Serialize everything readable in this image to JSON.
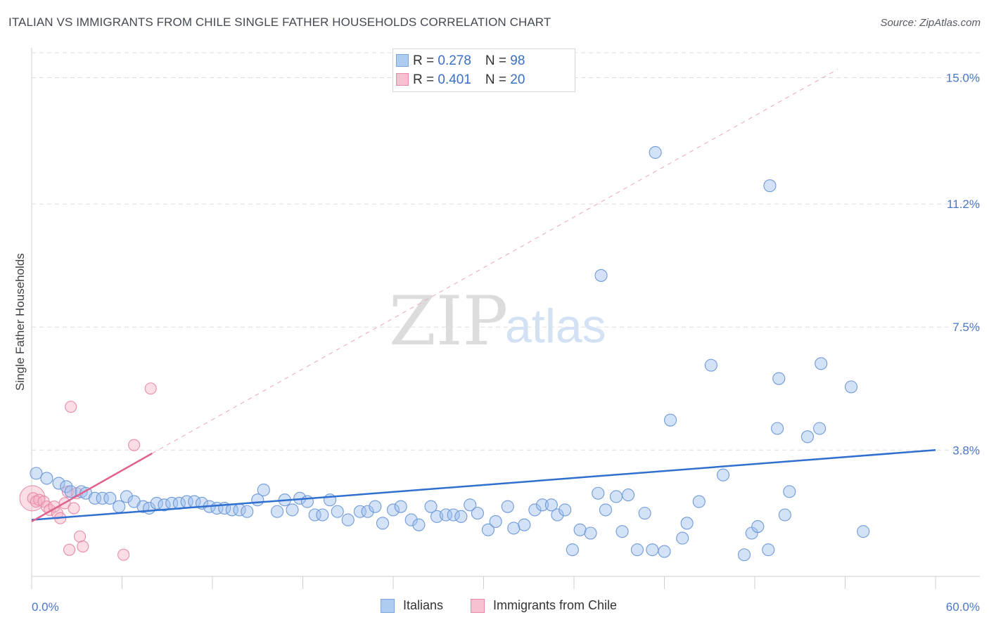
{
  "header": {
    "title": "ITALIAN VS IMMIGRANTS FROM CHILE SINGLE FATHER HOUSEHOLDS CORRELATION CHART",
    "source": "Source: ZipAtlas.com"
  },
  "watermark": {
    "zip": "ZIP",
    "atlas": "atlas"
  },
  "legend": {
    "rows": [
      {
        "r_label": "R = ",
        "r_value": "0.278",
        "n_label": "N = ",
        "n_value": "98",
        "color": "#aecbf2",
        "border": "#7aa4dc"
      },
      {
        "r_label": "R = ",
        "r_value": "0.401",
        "n_label": "N = ",
        "n_value": "20",
        "color": "#f7c0d0",
        "border": "#e88aa6"
      }
    ]
  },
  "bottom_legend": {
    "italians": "Italians",
    "chile": "Immigrants from Chile"
  },
  "chart_data": {
    "type": "scatter",
    "title": "ITALIAN VS IMMIGRANTS FROM CHILE SINGLE FATHER HOUSEHOLDS CORRELATION CHART",
    "xlabel": "",
    "ylabel": "Single Father Households",
    "xlim": [
      0,
      60
    ],
    "ylim": [
      0,
      15.75
    ],
    "x_tick_labels": [
      "0.0%",
      "60.0%"
    ],
    "y_ticks": [
      3.8,
      7.5,
      11.2,
      15.0
    ],
    "y_tick_labels": [
      "3.8%",
      "7.5%",
      "11.2%",
      "15.0%"
    ],
    "grid": true,
    "colors": {
      "italians": "#9dbfee",
      "italians_line": "#2f6fd0",
      "chile": "#f5b3c6",
      "chile_line": "#e0628d"
    },
    "series": [
      {
        "name": "Italians",
        "points": [
          [
            0.3,
            3.1
          ],
          [
            1.0,
            2.95
          ],
          [
            1.8,
            2.8
          ],
          [
            2.3,
            2.7
          ],
          [
            2.6,
            2.55
          ],
          [
            3.3,
            2.55
          ],
          [
            3.6,
            2.5
          ],
          [
            4.2,
            2.35
          ],
          [
            4.7,
            2.35
          ],
          [
            5.2,
            2.35
          ],
          [
            5.8,
            2.1
          ],
          [
            6.3,
            2.4
          ],
          [
            6.8,
            2.25
          ],
          [
            7.4,
            2.1
          ],
          [
            7.8,
            2.05
          ],
          [
            8.3,
            2.2
          ],
          [
            8.8,
            2.15
          ],
          [
            9.3,
            2.2
          ],
          [
            9.8,
            2.2
          ],
          [
            10.3,
            2.25
          ],
          [
            10.8,
            2.25
          ],
          [
            11.3,
            2.2
          ],
          [
            11.8,
            2.1
          ],
          [
            12.3,
            2.05
          ],
          [
            12.8,
            2.05
          ],
          [
            13.3,
            2.0
          ],
          [
            13.8,
            2.0
          ],
          [
            14.3,
            1.95
          ],
          [
            15.0,
            2.3
          ],
          [
            15.4,
            2.6
          ],
          [
            16.3,
            1.95
          ],
          [
            16.8,
            2.3
          ],
          [
            17.3,
            2.0
          ],
          [
            17.8,
            2.35
          ],
          [
            18.3,
            2.25
          ],
          [
            18.8,
            1.85
          ],
          [
            19.3,
            1.85
          ],
          [
            19.8,
            2.3
          ],
          [
            20.3,
            1.95
          ],
          [
            21.0,
            1.7
          ],
          [
            21.8,
            1.95
          ],
          [
            22.3,
            1.95
          ],
          [
            22.8,
            2.1
          ],
          [
            23.3,
            1.6
          ],
          [
            24.0,
            2.0
          ],
          [
            24.5,
            2.1
          ],
          [
            25.2,
            1.7
          ],
          [
            25.7,
            1.55
          ],
          [
            26.5,
            2.1
          ],
          [
            26.9,
            1.8
          ],
          [
            27.5,
            1.85
          ],
          [
            28.0,
            1.85
          ],
          [
            28.5,
            1.8
          ],
          [
            29.1,
            2.15
          ],
          [
            29.6,
            1.9
          ],
          [
            30.3,
            1.4
          ],
          [
            30.8,
            1.65
          ],
          [
            31.6,
            2.1
          ],
          [
            32.0,
            1.45
          ],
          [
            32.7,
            1.55
          ],
          [
            33.4,
            2.0
          ],
          [
            33.9,
            2.15
          ],
          [
            34.5,
            2.15
          ],
          [
            34.9,
            1.85
          ],
          [
            35.4,
            2.0
          ],
          [
            35.9,
            0.8
          ],
          [
            36.4,
            1.4
          ],
          [
            37.1,
            1.3
          ],
          [
            37.6,
            2.5
          ],
          [
            38.1,
            2.0
          ],
          [
            38.8,
            2.4
          ],
          [
            39.2,
            1.35
          ],
          [
            39.6,
            2.45
          ],
          [
            40.2,
            0.8
          ],
          [
            40.7,
            1.9
          ],
          [
            41.2,
            0.8
          ],
          [
            42.0,
            0.75
          ],
          [
            42.4,
            4.7
          ],
          [
            43.2,
            1.15
          ],
          [
            43.5,
            1.6
          ],
          [
            44.3,
            2.25
          ],
          [
            45.1,
            6.35
          ],
          [
            45.9,
            3.05
          ],
          [
            47.3,
            0.65
          ],
          [
            47.8,
            1.3
          ],
          [
            48.2,
            1.5
          ],
          [
            48.9,
            0.8
          ],
          [
            49.5,
            4.45
          ],
          [
            49.6,
            5.95
          ],
          [
            50.0,
            1.85
          ],
          [
            50.3,
            2.55
          ],
          [
            37.8,
            9.05
          ],
          [
            41.4,
            12.75
          ],
          [
            49.0,
            11.75
          ],
          [
            51.5,
            4.2
          ],
          [
            52.4,
            6.4
          ],
          [
            52.3,
            4.45
          ],
          [
            54.4,
            5.7
          ],
          [
            55.2,
            1.35
          ]
        ]
      },
      {
        "name": "Immigrants from Chile",
        "points": [
          [
            0.1,
            2.35
          ],
          [
            0.3,
            2.25
          ],
          [
            0.5,
            2.3
          ],
          [
            0.8,
            2.25
          ],
          [
            1.0,
            2.1
          ],
          [
            1.2,
            2.0
          ],
          [
            1.5,
            2.1
          ],
          [
            1.7,
            1.9
          ],
          [
            1.9,
            1.75
          ],
          [
            2.2,
            2.2
          ],
          [
            2.4,
            2.55
          ],
          [
            2.6,
            5.1
          ],
          [
            3.0,
            2.5
          ],
          [
            2.8,
            2.05
          ],
          [
            3.2,
            1.2
          ],
          [
            3.4,
            0.9
          ],
          [
            2.5,
            0.8
          ],
          [
            6.1,
            0.65
          ],
          [
            6.8,
            3.95
          ],
          [
            7.9,
            5.65
          ]
        ]
      }
    ],
    "trendlines": [
      {
        "series": "Italians",
        "x": [
          0,
          60
        ],
        "y": [
          1.7,
          3.8
        ]
      },
      {
        "series": "Immigrants from Chile",
        "x": [
          0,
          8.0
        ],
        "y": [
          1.65,
          3.7
        ]
      },
      {
        "series": "Immigrants from Chile (extrapolated)",
        "x": [
          8.0,
          53.5
        ],
        "y": [
          3.7,
          15.25
        ]
      }
    ]
  }
}
